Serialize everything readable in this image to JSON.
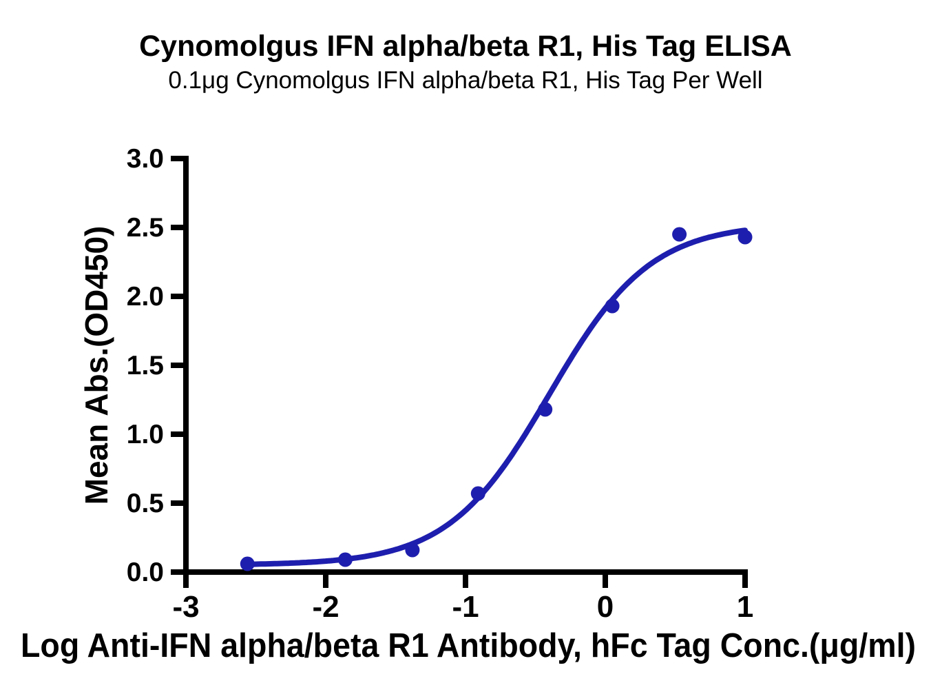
{
  "chart_data": {
    "type": "scatter",
    "title": "Cynomolgus IFN alpha/beta R1, His Tag ELISA",
    "subtitle": "0.1μg Cynomolgus IFN alpha/beta R1, His Tag Per Well",
    "xlabel": "Log Anti-IFN alpha/beta R1 Antibody, hFc Tag Conc.(μg/ml)",
    "ylabel": "Mean Abs.(OD450)",
    "xlim": [
      -3,
      1
    ],
    "ylim": [
      0,
      3
    ],
    "grid": false,
    "legend_position": "none",
    "x_ticks": [
      {
        "value": -3,
        "label": "-3"
      },
      {
        "value": -2,
        "label": "-2"
      },
      {
        "value": -1,
        "label": "-1"
      },
      {
        "value": 0,
        "label": "0"
      },
      {
        "value": 1,
        "label": "1"
      }
    ],
    "y_ticks": [
      {
        "value": 0.0,
        "label": "0.0"
      },
      {
        "value": 0.5,
        "label": "0.5"
      },
      {
        "value": 1.0,
        "label": "1.0"
      },
      {
        "value": 1.5,
        "label": "1.5"
      },
      {
        "value": 2.0,
        "label": "2.0"
      },
      {
        "value": 2.5,
        "label": "2.5"
      },
      {
        "value": 3.0,
        "label": "3.0"
      }
    ],
    "points": [
      {
        "x": -2.56,
        "y": 0.06
      },
      {
        "x": -1.86,
        "y": 0.09
      },
      {
        "x": -1.38,
        "y": 0.16
      },
      {
        "x": -0.91,
        "y": 0.57
      },
      {
        "x": -0.43,
        "y": 1.18
      },
      {
        "x": 0.05,
        "y": 1.93
      },
      {
        "x": 0.53,
        "y": 2.45
      },
      {
        "x": 1.0,
        "y": 2.43
      }
    ],
    "point_color": "#1e1eae",
    "curve_color": "#1e1eae",
    "axis_color": "#000000",
    "fit_curve": {
      "model": "4PL",
      "bottom": 0.05,
      "top": 2.53,
      "log_ec50": -0.4,
      "hill_slope": 1.2,
      "x_start": -2.56,
      "x_end": 1.0
    }
  }
}
